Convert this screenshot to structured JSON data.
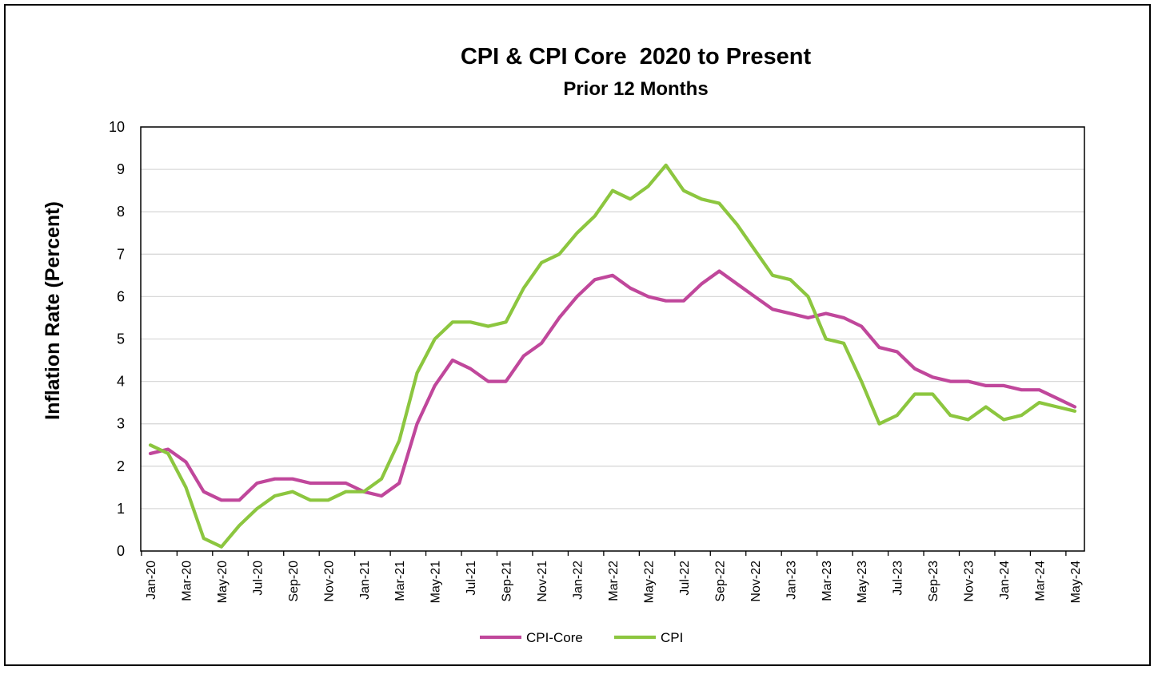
{
  "chart_data": {
    "type": "line",
    "title": "CPI & CPI Core  2020 to Present",
    "subtitle": "Prior 12 Months",
    "xlabel": "",
    "ylabel": "Inflation Rate (Percent)",
    "ylim": [
      0,
      10
    ],
    "yticks": [
      0,
      1,
      2,
      3,
      4,
      5,
      6,
      7,
      8,
      9,
      10
    ],
    "grid": true,
    "legend_position": "bottom-center",
    "categories": [
      "Jan-20",
      "Feb-20",
      "Mar-20",
      "Apr-20",
      "May-20",
      "Jun-20",
      "Jul-20",
      "Aug-20",
      "Sep-20",
      "Oct-20",
      "Nov-20",
      "Dec-20",
      "Jan-21",
      "Feb-21",
      "Mar-21",
      "Apr-21",
      "May-21",
      "Jun-21",
      "Jul-21",
      "Aug-21",
      "Sep-21",
      "Oct-21",
      "Nov-21",
      "Dec-21",
      "Jan-22",
      "Feb-22",
      "Mar-22",
      "Apr-22",
      "May-22",
      "Jun-22",
      "Jul-22",
      "Aug-22",
      "Sep-22",
      "Oct-22",
      "Nov-22",
      "Dec-22",
      "Jan-23",
      "Feb-23",
      "Mar-23",
      "Apr-23",
      "May-23",
      "Jun-23",
      "Jul-23",
      "Aug-23",
      "Sep-23",
      "Oct-23",
      "Nov-23",
      "Dec-23",
      "Jan-24",
      "Feb-24",
      "Mar-24",
      "Apr-24",
      "May-24"
    ],
    "x_tick_labels": [
      "Jan-20",
      "Mar-20",
      "May-20",
      "Jul-20",
      "Sep-20",
      "Nov-20",
      "Jan-21",
      "Mar-21",
      "May-21",
      "Jul-21",
      "Sep-21",
      "Nov-21",
      "Jan-22",
      "Mar-22",
      "May-22",
      "Jul-22",
      "Sep-22",
      "Nov-22",
      "Jan-23",
      "Mar-23",
      "May-23",
      "Jul-23",
      "Sep-23",
      "Nov-23",
      "Jan-24",
      "Mar-24",
      "May-24"
    ],
    "series": [
      {
        "name": "CPI-Core",
        "color": "#c0479b",
        "values": [
          2.3,
          2.4,
          2.1,
          1.4,
          1.2,
          1.2,
          1.6,
          1.7,
          1.7,
          1.6,
          1.6,
          1.6,
          1.4,
          1.3,
          1.6,
          3.0,
          3.9,
          4.5,
          4.3,
          4.0,
          4.0,
          4.6,
          4.9,
          5.5,
          6.0,
          6.4,
          6.5,
          6.2,
          6.0,
          5.9,
          5.9,
          6.3,
          6.6,
          6.3,
          6.0,
          5.7,
          5.6,
          5.5,
          5.6,
          5.5,
          5.3,
          4.8,
          4.7,
          4.3,
          4.1,
          4.0,
          4.0,
          3.9,
          3.9,
          3.8,
          3.8,
          3.6,
          3.4
        ]
      },
      {
        "name": "CPI",
        "color": "#8cc63f",
        "values": [
          2.5,
          2.3,
          1.5,
          0.3,
          0.1,
          0.6,
          1.0,
          1.3,
          1.4,
          1.2,
          1.2,
          1.4,
          1.4,
          1.7,
          2.6,
          4.2,
          5.0,
          5.4,
          5.4,
          5.3,
          5.4,
          6.2,
          6.8,
          7.0,
          7.5,
          7.9,
          8.5,
          8.3,
          8.6,
          9.1,
          8.5,
          8.3,
          8.2,
          7.7,
          7.1,
          6.5,
          6.4,
          6.0,
          5.0,
          4.9,
          4.0,
          3.0,
          3.2,
          3.7,
          3.7,
          3.2,
          3.1,
          3.4,
          3.1,
          3.2,
          3.5,
          3.4,
          3.3
        ]
      }
    ]
  }
}
